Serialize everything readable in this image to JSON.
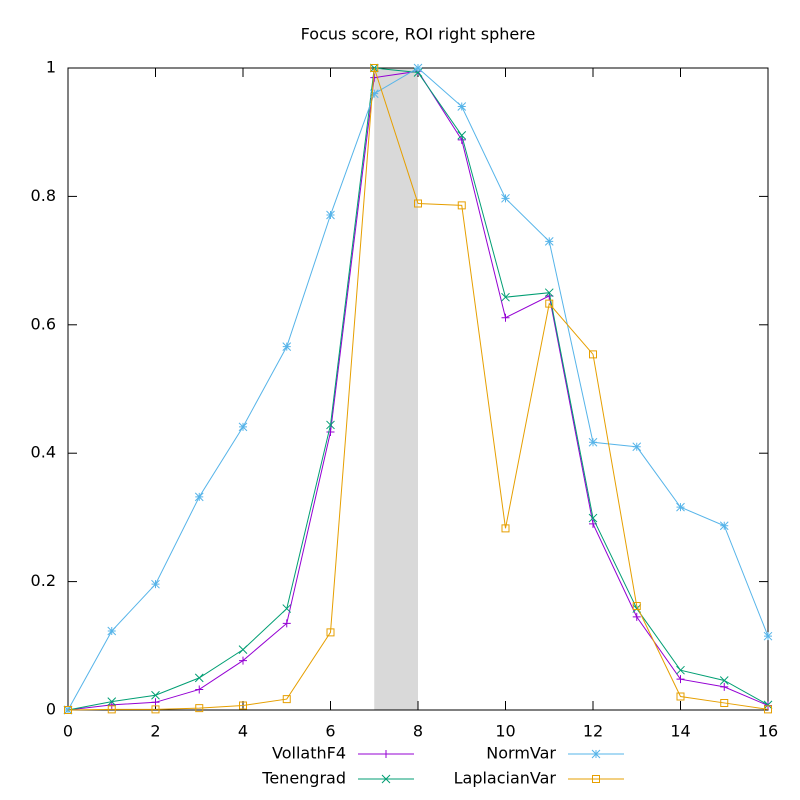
{
  "chart_data": {
    "type": "line",
    "title": "Focus score, ROI right sphere",
    "x": [
      0,
      1,
      2,
      3,
      4,
      5,
      6,
      7,
      8,
      9,
      10,
      11,
      12,
      13,
      14,
      15,
      16
    ],
    "xlim": [
      0,
      16
    ],
    "xticks": [
      0,
      2,
      4,
      6,
      8,
      10,
      12,
      14,
      16
    ],
    "ylim": [
      0,
      1
    ],
    "yticks": [
      0,
      0.2,
      0.4,
      0.6,
      0.8,
      1
    ],
    "shaded_region": [
      7,
      8
    ],
    "shaded_color": "#d9d9d9",
    "legend": "bottom",
    "series": [
      {
        "name": "VollathF4",
        "color": "#9400d3",
        "marker": "plus",
        "values": [
          0,
          0.008,
          0.012,
          0.032,
          0.077,
          0.135,
          0.433,
          0.985,
          0.995,
          0.888,
          0.611,
          0.645,
          0.29,
          0.145,
          0.048,
          0.036,
          0.007
        ]
      },
      {
        "name": "Tenengrad",
        "color": "#009e73",
        "marker": "cross",
        "values": [
          0,
          0.013,
          0.023,
          0.05,
          0.094,
          0.158,
          0.444,
          1.0,
          0.993,
          0.895,
          0.643,
          0.65,
          0.299,
          0.158,
          0.062,
          0.046,
          0.008
        ]
      },
      {
        "name": "NormVar",
        "color": "#56b4e9",
        "marker": "star",
        "values": [
          0,
          0.123,
          0.196,
          0.332,
          0.441,
          0.566,
          0.771,
          0.96,
          1.0,
          0.94,
          0.797,
          0.73,
          0.417,
          0.41,
          0.316,
          0.287,
          0.115
        ]
      },
      {
        "name": "LaplacianVar",
        "color": "#e69f00",
        "marker": "square",
        "values": [
          0,
          0.001,
          0.001,
          0.003,
          0.007,
          0.017,
          0.121,
          1.0,
          0.789,
          0.786,
          0.283,
          0.633,
          0.554,
          0.162,
          0.021,
          0.011,
          0.001
        ]
      }
    ]
  }
}
